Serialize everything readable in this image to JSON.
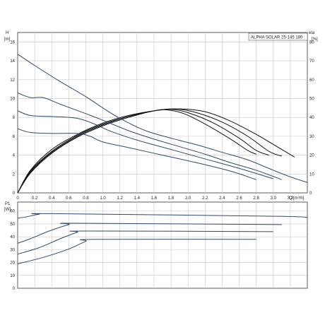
{
  "chart_data": [
    {
      "type": "line",
      "title": "ALPHA SOLAR 25-145  180",
      "ylabel": "H",
      "yunit": "[m]",
      "y2label": "eta",
      "y2unit": "[%]",
      "xlabel": "Q",
      "xunit": "[m³/h]",
      "xlim": [
        0,
        3.4
      ],
      "ylim": [
        0,
        17
      ],
      "y2lim": [
        0,
        85
      ],
      "xticks": [
        0,
        0.2,
        0.4,
        0.6,
        0.8,
        1.0,
        1.2,
        1.4,
        1.6,
        1.8,
        2.0,
        2.2,
        2.4,
        2.6,
        2.8,
        3.0,
        3.2
      ],
      "xtick_labels": [
        "0",
        "0.2",
        "0.4",
        "0.6",
        "0.8",
        "1.0",
        "1.2",
        "1.4",
        "1.6",
        "1.8",
        "2.0",
        "2.2",
        "2.4",
        "2.6",
        "2.8",
        "3.0",
        "3.2"
      ],
      "yticks": [
        0,
        2,
        4,
        6,
        8,
        10,
        12,
        14,
        16
      ],
      "y2ticks": [
        0,
        10,
        20,
        30,
        40,
        50,
        60,
        70,
        80
      ],
      "grid": true,
      "head_series": [
        {
          "points": [
            [
              0,
              14.7
            ],
            [
              0.2,
              13.5
            ],
            [
              0.5,
              11.8
            ],
            [
              0.8,
              10.2
            ],
            [
              1.0,
              9.0
            ],
            [
              1.2,
              7.9
            ],
            [
              1.5,
              6.6
            ],
            [
              1.8,
              5.8
            ],
            [
              2.1,
              5.1
            ],
            [
              2.4,
              4.3
            ],
            [
              2.7,
              3.5
            ],
            [
              3.0,
              2.4
            ],
            [
              3.2,
              1.7
            ],
            [
              3.4,
              1.1
            ]
          ]
        },
        {
          "points": [
            [
              0,
              10.6
            ],
            [
              0.15,
              10.1
            ],
            [
              0.3,
              10.1
            ],
            [
              0.5,
              9.4
            ],
            [
              0.8,
              8.4
            ],
            [
              1.0,
              7.7
            ],
            [
              1.3,
              6.6
            ],
            [
              1.6,
              5.7
            ],
            [
              1.9,
              4.9
            ],
            [
              2.2,
              4.1
            ],
            [
              2.5,
              3.2
            ],
            [
              2.8,
              2.4
            ],
            [
              3.1,
              1.4
            ]
          ]
        },
        {
          "points": [
            [
              0,
              8.7
            ],
            [
              0.15,
              8.2
            ],
            [
              0.4,
              8.1
            ],
            [
              0.7,
              7.9
            ],
            [
              0.9,
              7.3
            ],
            [
              1.1,
              6.5
            ],
            [
              1.4,
              5.6
            ],
            [
              1.8,
              4.6
            ],
            [
              2.2,
              3.6
            ],
            [
              2.6,
              2.6
            ],
            [
              3.0,
              1.5
            ]
          ]
        },
        {
          "points": [
            [
              0,
              6.8
            ],
            [
              0.15,
              6.4
            ],
            [
              0.4,
              6.3
            ],
            [
              0.7,
              6.3
            ],
            [
              0.85,
              6.0
            ],
            [
              1.0,
              5.4
            ],
            [
              1.3,
              4.8
            ],
            [
              1.7,
              4.0
            ],
            [
              2.1,
              3.2
            ],
            [
              2.5,
              2.3
            ],
            [
              2.8,
              1.4
            ]
          ]
        }
      ],
      "eta_series": [
        {
          "points": [
            [
              0,
              0
            ],
            [
              0.15,
              12
            ],
            [
              0.4,
              23
            ],
            [
              0.7,
              31
            ],
            [
              1.0,
              37
            ],
            [
              1.3,
              41
            ],
            [
              1.6,
              43.5
            ],
            [
              1.9,
              44.5
            ],
            [
              2.2,
              43
            ],
            [
              2.5,
              38
            ],
            [
              2.8,
              31
            ],
            [
              3.1,
              23
            ],
            [
              3.25,
              19
            ]
          ]
        },
        {
          "points": [
            [
              0,
              0
            ],
            [
              0.15,
              11.5
            ],
            [
              0.4,
              22
            ],
            [
              0.7,
              30.5
            ],
            [
              1.0,
              36.5
            ],
            [
              1.3,
              40.5
            ],
            [
              1.6,
              43.5
            ],
            [
              1.85,
              44.5
            ],
            [
              2.1,
              42.5
            ],
            [
              2.4,
              37.5
            ],
            [
              2.7,
              30
            ],
            [
              2.95,
              22
            ],
            [
              3.1,
              19.5
            ]
          ]
        },
        {
          "points": [
            [
              0,
              0
            ],
            [
              0.15,
              11
            ],
            [
              0.4,
              21.5
            ],
            [
              0.7,
              30
            ],
            [
              1.0,
              36
            ],
            [
              1.3,
              40.5
            ],
            [
              1.6,
              43.5
            ],
            [
              1.8,
              44.3
            ],
            [
              2.0,
              42.5
            ],
            [
              2.3,
              37
            ],
            [
              2.6,
              29
            ],
            [
              2.8,
              22.5
            ],
            [
              2.95,
              20
            ]
          ]
        },
        {
          "points": [
            [
              0,
              0
            ],
            [
              0.15,
              10.5
            ],
            [
              0.4,
              21
            ],
            [
              0.7,
              29.5
            ],
            [
              1.0,
              35.5
            ],
            [
              1.3,
              40
            ],
            [
              1.6,
              43.5
            ],
            [
              1.75,
              44
            ],
            [
              1.95,
              42
            ],
            [
              2.2,
              36.5
            ],
            [
              2.5,
              28.5
            ],
            [
              2.7,
              22.5
            ],
            [
              2.8,
              20.5
            ]
          ]
        }
      ]
    },
    {
      "type": "line",
      "ylabel": "P1",
      "yunit": "[W]",
      "xlim": [
        0,
        3.4
      ],
      "ylim": [
        0,
        67
      ],
      "yticks": [
        0,
        10,
        20,
        30,
        40,
        50,
        60
      ],
      "grid": true,
      "series": [
        {
          "points": [
            [
              0,
              54.5
            ],
            [
              0.1,
              55.5
            ],
            [
              0.25,
              57.5
            ],
            [
              0.4,
              58
            ],
            [
              3.0,
              56
            ],
            [
              3.4,
              55
            ]
          ]
        },
        {
          "points": [
            [
              0,
              35
            ],
            [
              0.15,
              38.5
            ],
            [
              0.35,
              44
            ],
            [
              0.6,
              49.5
            ],
            [
              0.7,
              50.5
            ],
            [
              3.1,
              49.5
            ]
          ]
        },
        {
          "points": [
            [
              0,
              26.5
            ],
            [
              0.25,
              31.5
            ],
            [
              0.5,
              38.5
            ],
            [
              0.7,
              43.5
            ],
            [
              0.8,
              44.5
            ],
            [
              3.0,
              44
            ]
          ]
        },
        {
          "points": [
            [
              0,
              19
            ],
            [
              0.3,
              24
            ],
            [
              0.6,
              30.5
            ],
            [
              0.8,
              36.5
            ],
            [
              0.9,
              38
            ],
            [
              2.8,
              38
            ]
          ]
        }
      ]
    }
  ]
}
